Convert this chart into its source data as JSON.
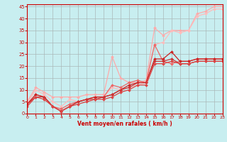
{
  "xlabel": "Vent moyen/en rafales ( km/h )",
  "background_color": "#c8eef0",
  "grid_color": "#aab8b8",
  "xlim": [
    0,
    23
  ],
  "ylim": [
    0,
    46
  ],
  "yticks": [
    0,
    5,
    10,
    15,
    20,
    25,
    30,
    35,
    40,
    45
  ],
  "xticks": [
    0,
    1,
    2,
    3,
    4,
    5,
    6,
    7,
    8,
    9,
    10,
    11,
    12,
    13,
    14,
    15,
    16,
    17,
    18,
    19,
    20,
    21,
    22,
    23
  ],
  "lines": [
    {
      "x": [
        0,
        1,
        2,
        3,
        4,
        5,
        6,
        7,
        8,
        9,
        10,
        11,
        12,
        13,
        14,
        15,
        16,
        17,
        18,
        19,
        20,
        21,
        22,
        23
      ],
      "y": [
        5,
        11,
        9,
        7,
        7,
        7,
        7,
        8,
        8,
        8,
        24,
        15,
        13,
        13,
        14,
        36,
        33,
        35,
        35,
        35,
        42,
        43,
        45,
        45
      ],
      "color": "#ffaaaa",
      "lw": 0.9
    },
    {
      "x": [
        0,
        1,
        2,
        3,
        4,
        5,
        6,
        7,
        8,
        9,
        10,
        11,
        12,
        13,
        14,
        15,
        16,
        17,
        18,
        19,
        20,
        21,
        22,
        23
      ],
      "y": [
        4,
        10,
        8,
        5,
        3,
        6,
        5,
        6,
        7,
        7,
        11,
        10,
        11,
        12,
        13,
        29,
        30,
        35,
        34,
        35,
        41,
        42,
        44,
        44
      ],
      "color": "#ffbbbb",
      "lw": 0.9
    },
    {
      "x": [
        0,
        1,
        2,
        3,
        4,
        5,
        6,
        7,
        8,
        9,
        10,
        11,
        12,
        13,
        14,
        15,
        16,
        17,
        18,
        19,
        20,
        21,
        22,
        23
      ],
      "y": [
        4,
        8,
        7,
        3,
        2,
        4,
        5,
        6,
        7,
        7,
        12,
        11,
        13,
        14,
        13,
        29,
        22,
        21,
        22,
        22,
        23,
        23,
        23,
        23
      ],
      "color": "#ee6666",
      "lw": 0.9
    },
    {
      "x": [
        0,
        1,
        2,
        3,
        4,
        5,
        6,
        7,
        8,
        9,
        10,
        11,
        12,
        13,
        14,
        15,
        16,
        17,
        18,
        19,
        20,
        21,
        22,
        23
      ],
      "y": [
        4,
        8,
        7,
        3,
        1,
        3,
        5,
        6,
        7,
        7,
        8,
        10,
        12,
        13,
        13,
        23,
        23,
        26,
        22,
        22,
        23,
        23,
        23,
        23
      ],
      "color": "#cc2222",
      "lw": 0.9
    },
    {
      "x": [
        0,
        1,
        2,
        3,
        4,
        5,
        6,
        7,
        8,
        9,
        10,
        11,
        12,
        13,
        14,
        15,
        16,
        17,
        18,
        19,
        20,
        21,
        22,
        23
      ],
      "y": [
        4,
        7,
        7,
        3,
        1,
        3,
        5,
        6,
        6,
        7,
        8,
        10,
        11,
        13,
        13,
        22,
        22,
        23,
        21,
        21,
        22,
        22,
        22,
        22
      ],
      "color": "#cc3333",
      "lw": 0.9
    },
    {
      "x": [
        0,
        1,
        2,
        3,
        4,
        5,
        6,
        7,
        8,
        9,
        10,
        11,
        12,
        13,
        14,
        15,
        16,
        17,
        18,
        19,
        20,
        21,
        22,
        23
      ],
      "y": [
        3,
        7,
        6,
        3,
        1,
        3,
        4,
        5,
        6,
        6,
        7,
        9,
        10,
        12,
        12,
        21,
        21,
        22,
        21,
        21,
        22,
        22,
        22,
        22
      ],
      "color": "#dd4444",
      "lw": 0.9
    }
  ],
  "tick_color": "#cc0000",
  "spine_color": "#cc0000",
  "figsize": [
    3.2,
    2.0
  ],
  "dpi": 100
}
